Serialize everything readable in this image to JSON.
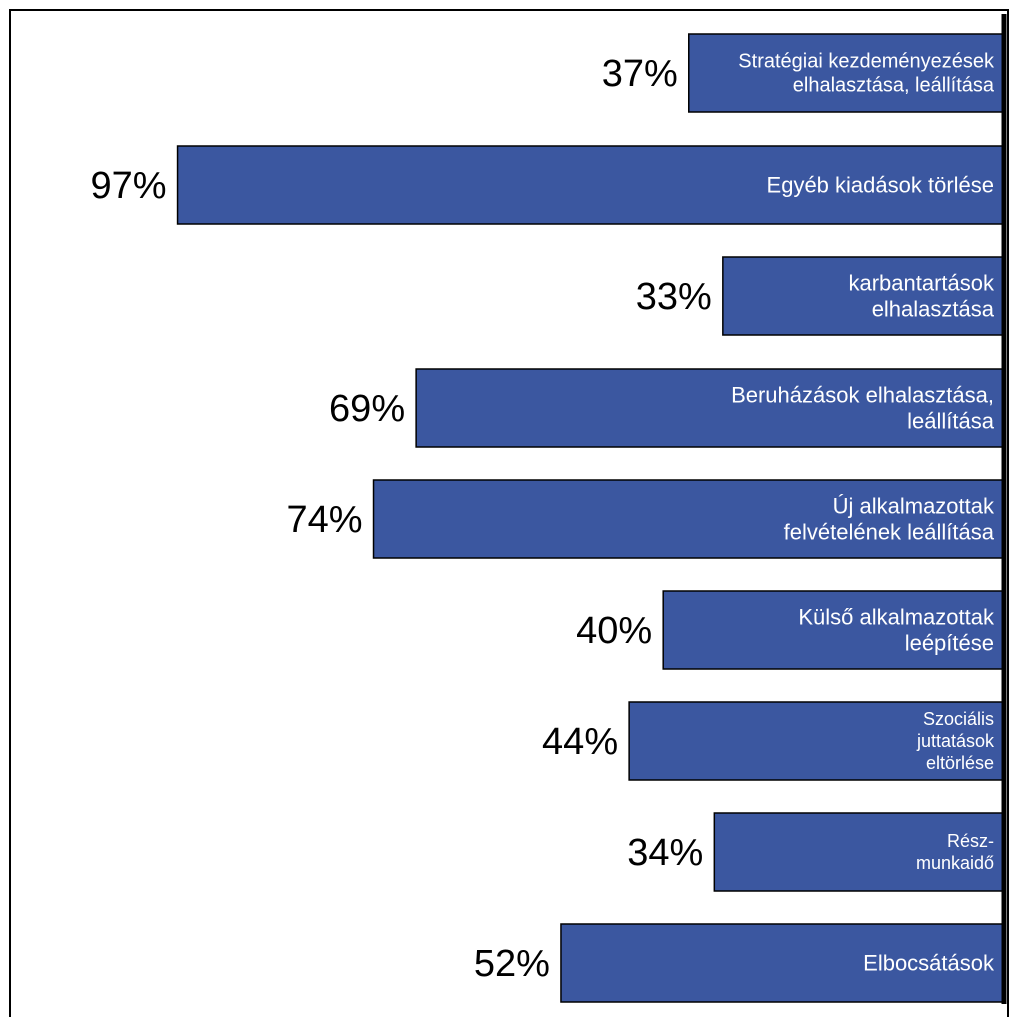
{
  "chart_data": {
    "type": "bar",
    "orientation": "horizontal",
    "title": "",
    "xlabel": "",
    "ylabel": "",
    "xlim": [
      0,
      100
    ],
    "grid": false,
    "legend": "none",
    "bar_color": "#3b57a0",
    "categories": [
      "Stratégiai kezdeményezések elhalasztása, leállítása",
      "Egyéb kiadások törlése",
      "karbantartások elhalasztása",
      "Beruházások elhalasztása, leállítása",
      "Új alkalmazottak felvételének leállítása",
      "Külső alkalmazottak leépítése",
      "Szociális juttatások eltörlése",
      "Rész-munkaidő",
      "Elbocsátások"
    ],
    "label_lines": [
      [
        "Stratégiai kezdeményezések",
        "elhalasztása, leállítása"
      ],
      [
        "Egyéb kiadások törlése"
      ],
      [
        "karbantartások",
        "elhalasztása"
      ],
      [
        "Beruházások elhalasztása,",
        "leállítása"
      ],
      [
        "Új alkalmazottak",
        "felvételének leállítása"
      ],
      [
        "Külső alkalmazottak",
        "leépítése"
      ],
      [
        "Szociális",
        "juttatások",
        "eltörlése"
      ],
      [
        "Rész-",
        "munkaidő"
      ],
      [
        "Elbocsátások"
      ]
    ],
    "values": [
      37,
      97,
      33,
      69,
      74,
      40,
      44,
      34,
      52
    ],
    "value_labels": [
      "37%",
      "97%",
      "33%",
      "69%",
      "74%",
      "40%",
      "44%",
      "34%",
      "52%"
    ]
  }
}
